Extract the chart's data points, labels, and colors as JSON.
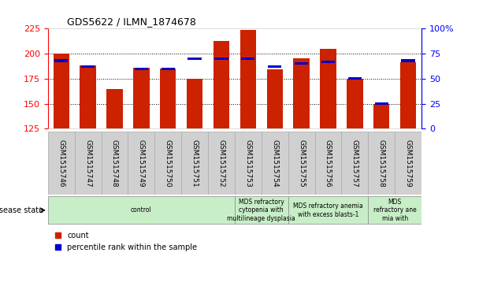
{
  "title": "GDS5622 / ILMN_1874678",
  "samples": [
    "GSM1515746",
    "GSM1515747",
    "GSM1515748",
    "GSM1515749",
    "GSM1515750",
    "GSM1515751",
    "GSM1515752",
    "GSM1515753",
    "GSM1515754",
    "GSM1515755",
    "GSM1515756",
    "GSM1515757",
    "GSM1515758",
    "GSM1515759"
  ],
  "counts": [
    200,
    188,
    165,
    186,
    185,
    175,
    213,
    224,
    184,
    195,
    205,
    175,
    150,
    191
  ],
  "percentile_ranks": [
    68,
    62,
    0,
    60,
    60,
    70,
    70,
    70,
    62,
    65,
    67,
    50,
    25,
    68
  ],
  "y_min": 125,
  "y_max": 225,
  "y_ticks_left": [
    125,
    150,
    175,
    200,
    225
  ],
  "y_ticks_right_vals": [
    0,
    25,
    50,
    75,
    100
  ],
  "y_right_labels": [
    "0",
    "25",
    "50",
    "75",
    "100%"
  ],
  "bar_color": "#cc2200",
  "blue_color": "#0000cc",
  "disease_groups": [
    {
      "label": "control",
      "start": 0,
      "end": 7
    },
    {
      "label": "MDS refractory\ncytopenia with\nmultilineage dysplasia",
      "start": 7,
      "end": 9
    },
    {
      "label": "MDS refractory anemia\nwith excess blasts-1",
      "start": 9,
      "end": 12
    },
    {
      "label": "MDS\nrefractory ane\nmia with",
      "start": 12,
      "end": 14
    }
  ],
  "disease_state_label": "disease state",
  "legend_count_label": "count",
  "legend_percentile_label": "percentile rank within the sample",
  "sample_box_color": "#d0d0d0",
  "disease_box_color": "#c8eec8",
  "disease_box_edge": "#888888"
}
